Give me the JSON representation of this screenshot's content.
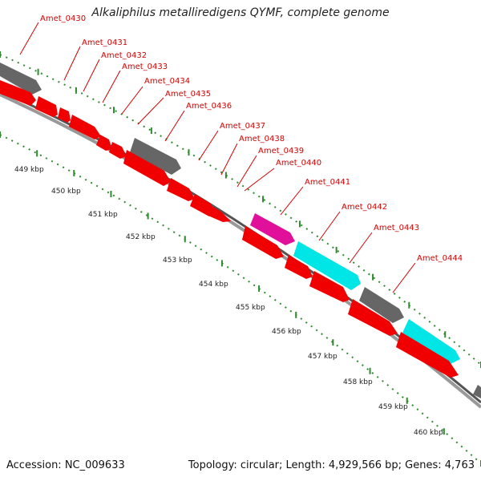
{
  "title": "Alkaliphilus metalliredigens QYMF, complete genome",
  "accession": "Accession: NC_009633",
  "summary": "Topology: circular; Length: 4,929,566 bp; Genes: 4,763",
  "colors": {
    "gene_red": "#f00000",
    "gray": "#666666",
    "cyan": "#00e5e5",
    "magenta": "#e0109a",
    "tick_green": "#2e8b2e",
    "label_red": "#d40000"
  },
  "gene_labels": [
    "Amet_0430",
    "Amet_0431",
    "Amet_0432",
    "Amet_0433",
    "Amet_0434",
    "Amet_0435",
    "Amet_0436",
    "Amet_0437",
    "Amet_0438",
    "Amet_0439",
    "Amet_0440",
    "Amet_0441",
    "Amet_0442",
    "Amet_0443",
    "Amet_0444"
  ],
  "kbp_labels": [
    "449 kbp",
    "450 kbp",
    "451 kbp",
    "452 kbp",
    "453 kbp",
    "454 kbp",
    "455 kbp",
    "456 kbp",
    "457 kbp",
    "458 kbp",
    "459 kbp",
    "460 kbp"
  ]
}
